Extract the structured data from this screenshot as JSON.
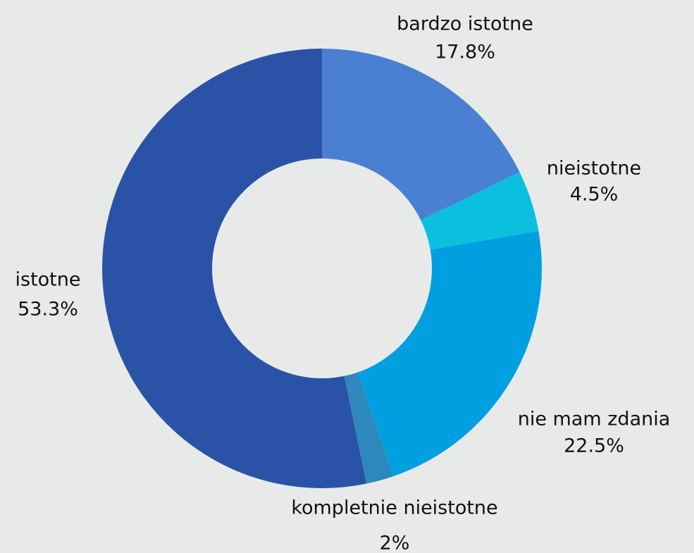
{
  "chart_data": {
    "type": "donut",
    "categories": [
      "bardzo istotne",
      "nieistotne",
      "nie mam zdania",
      "kompletnie nieistotne",
      "istotne"
    ],
    "values": [
      17.8,
      4.5,
      22.5,
      2,
      53.3
    ],
    "value_labels": [
      "17.8%",
      "4.5%",
      "22.5%",
      "2%",
      "53.3%"
    ],
    "colors": [
      "#4a80d2",
      "#0bbfdf",
      "#00a0e0",
      "#2e88bd",
      "#2a53a8"
    ]
  }
}
